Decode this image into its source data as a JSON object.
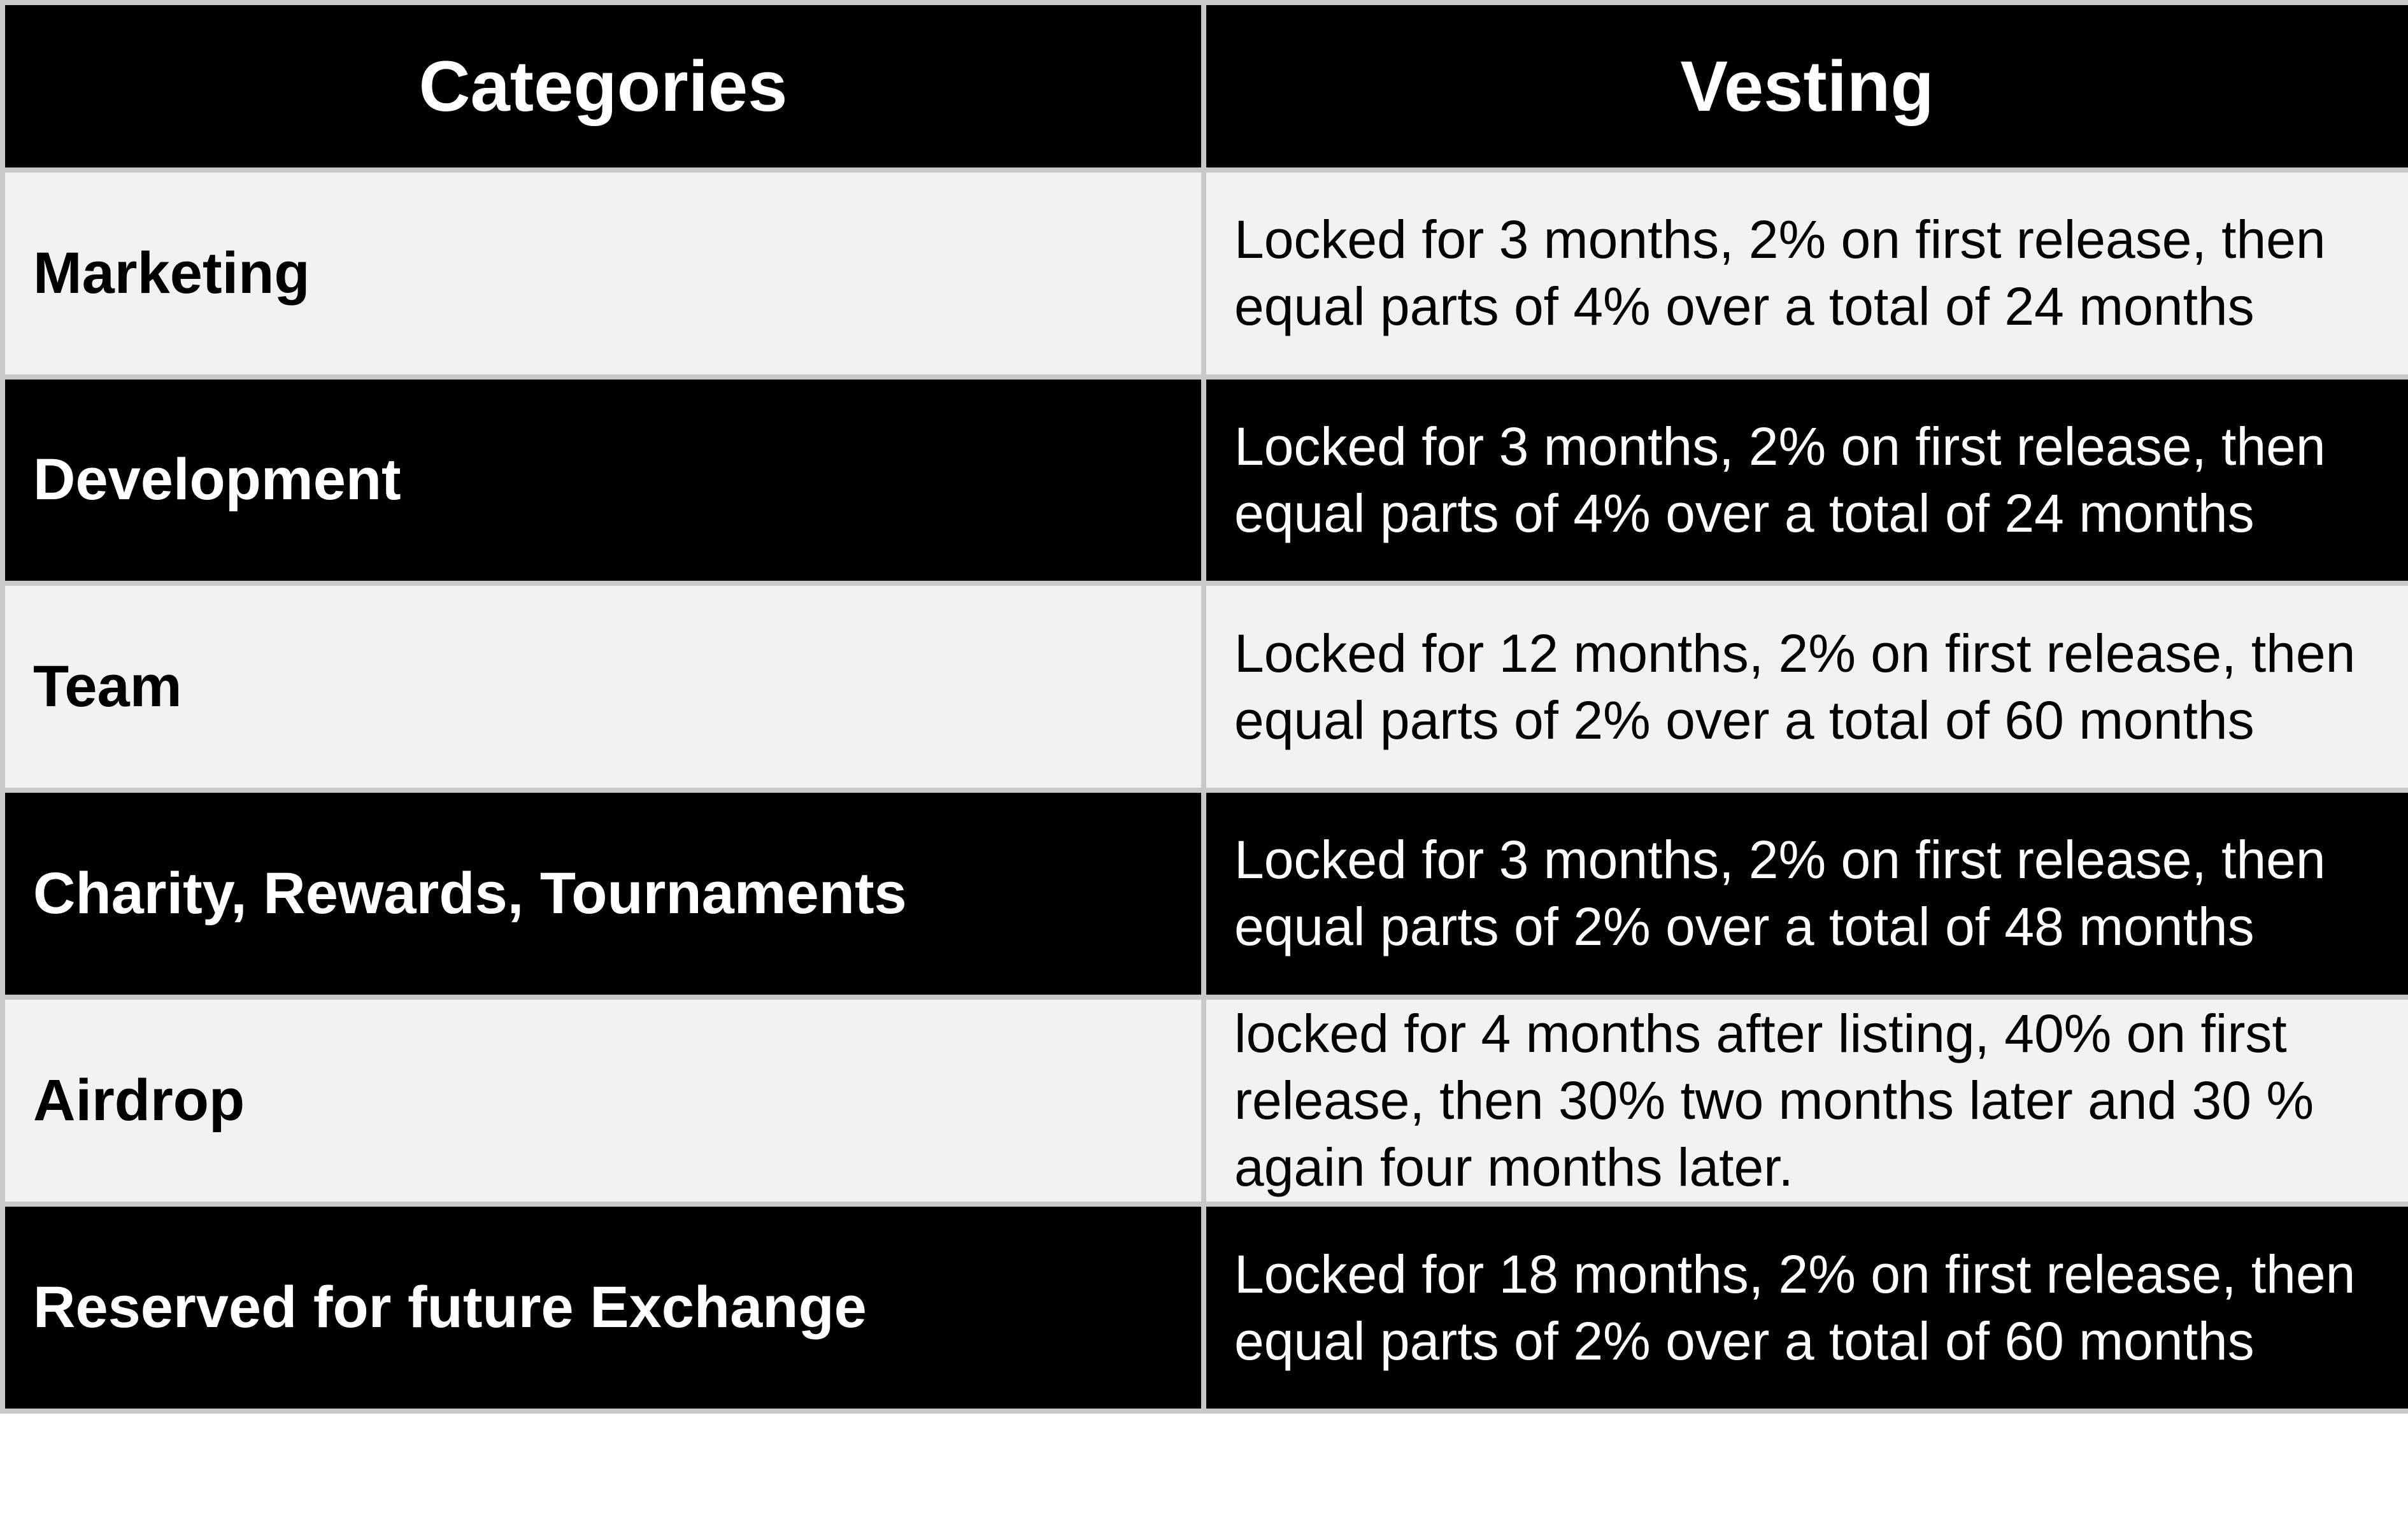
{
  "table": {
    "headers": [
      "Categories",
      "Vesting"
    ],
    "rows": [
      {
        "category": "Marketing",
        "vesting": "Locked for 3 months, 2% on first release, then equal parts of 4% over a total of 24 months"
      },
      {
        "category": "Development",
        "vesting": "Locked for 3 months, 2% on first release, then equal parts of 4% over a total of 24 months"
      },
      {
        "category": "Team",
        "vesting": "Locked for 12 months, 2% on first release, then equal parts of 2% over a total of 60 months"
      },
      {
        "category": "Charity, Rewards, Tournaments",
        "vesting": "Locked for 3 months, 2% on first release, then equal parts of 2% over a total of 48 months"
      },
      {
        "category": "Airdrop",
        "vesting": "locked for 4 months after listing, 40% on first release, then 30% two months later and 30 % again four months later."
      },
      {
        "category": "Reserved for future Exchange",
        "vesting": "Locked for 18 months, 2% on first release, then equal parts of 2% over a total of 60 months"
      }
    ]
  },
  "colors": {
    "header_bg": "#000000",
    "header_text": "#ffffff",
    "light_row_bg": "#f2f2f2",
    "dark_row_bg": "#000000",
    "grid_line": "#c8c8c8"
  }
}
